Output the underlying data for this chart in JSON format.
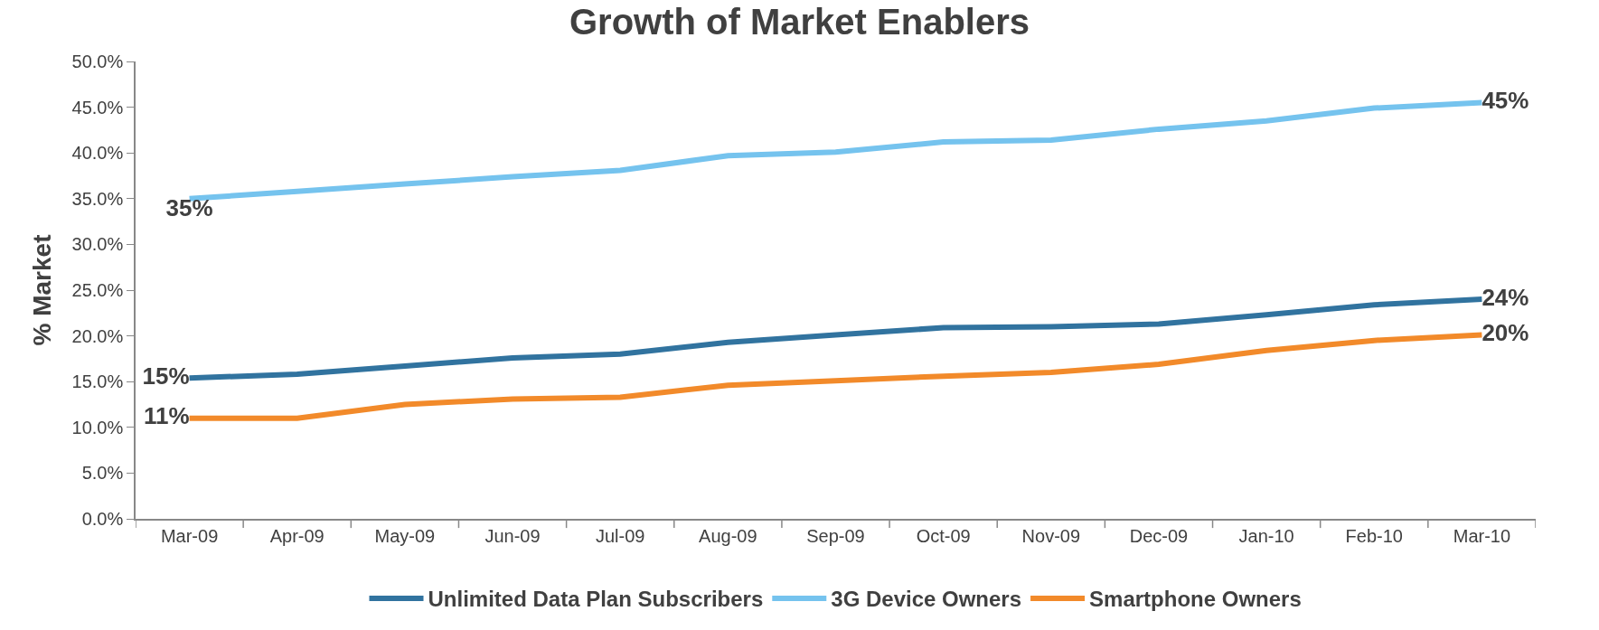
{
  "chart_data": {
    "type": "line",
    "title": "Growth of Market Enablers",
    "ylabel": "% Market",
    "categories": [
      "Mar-09",
      "Apr-09",
      "May-09",
      "Jun-09",
      "Jul-09",
      "Aug-09",
      "Sep-09",
      "Oct-09",
      "Nov-09",
      "Dec-09",
      "Jan-10",
      "Feb-10",
      "Mar-10"
    ],
    "series": [
      {
        "name": "Unlimited Data Plan Subscribers",
        "color": "#31739f",
        "values": [
          15.4,
          15.8,
          16.7,
          17.6,
          18.0,
          19.3,
          20.1,
          20.9,
          21.0,
          21.3,
          22.3,
          23.4,
          24.0
        ],
        "value_labels": [
          "15%",
          null,
          null,
          null,
          null,
          null,
          null,
          null,
          null,
          null,
          null,
          null,
          "24%"
        ]
      },
      {
        "name": "3G Device Owners",
        "color": "#75c3ee",
        "values": [
          35.0,
          35.8,
          36.6,
          37.4,
          38.1,
          39.7,
          40.1,
          41.2,
          41.4,
          42.6,
          43.5,
          44.9,
          45.5
        ],
        "value_labels": [
          "35%",
          null,
          null,
          null,
          null,
          null,
          null,
          null,
          null,
          null,
          null,
          null,
          "45%"
        ]
      },
      {
        "name": "Smartphone Owners",
        "color": "#f28a2a",
        "values": [
          11.0,
          11.0,
          12.5,
          13.1,
          13.3,
          14.6,
          15.1,
          15.6,
          16.0,
          16.9,
          18.4,
          19.5,
          20.1
        ],
        "value_labels": [
          "11%",
          null,
          null,
          null,
          null,
          null,
          null,
          null,
          null,
          null,
          null,
          null,
          "20%"
        ]
      }
    ],
    "ylim": [
      0,
      50
    ],
    "yticks": [
      {
        "value": 0,
        "label": "0.0%"
      },
      {
        "value": 5,
        "label": "5.0%"
      },
      {
        "value": 10,
        "label": "10.0%"
      },
      {
        "value": 15,
        "label": "15.0%"
      },
      {
        "value": 20,
        "label": "20.0%"
      },
      {
        "value": 25,
        "label": "25.0%"
      },
      {
        "value": 30,
        "label": "30.0%"
      },
      {
        "value": 35,
        "label": "35.0%"
      },
      {
        "value": 40,
        "label": "40.0%"
      },
      {
        "value": 45,
        "label": "45.0%"
      },
      {
        "value": 50,
        "label": "50.0%"
      }
    ],
    "legend": "bottom",
    "marker": "none",
    "line_style": "solid"
  }
}
